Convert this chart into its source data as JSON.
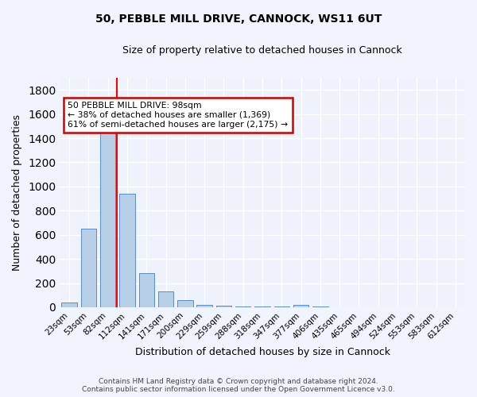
{
  "title1": "50, PEBBLE MILL DRIVE, CANNOCK, WS11 6UT",
  "title2": "Size of property relative to detached houses in Cannock",
  "xlabel": "Distribution of detached houses by size in Cannock",
  "ylabel": "Number of detached properties",
  "categories": [
    "23sqm",
    "53sqm",
    "82sqm",
    "112sqm",
    "141sqm",
    "171sqm",
    "200sqm",
    "229sqm",
    "259sqm",
    "288sqm",
    "318sqm",
    "347sqm",
    "377sqm",
    "406sqm",
    "435sqm",
    "465sqm",
    "494sqm",
    "524sqm",
    "553sqm",
    "583sqm",
    "612sqm"
  ],
  "values": [
    38,
    648,
    1470,
    940,
    280,
    130,
    58,
    22,
    10,
    5,
    5,
    5,
    18,
    3,
    0,
    0,
    0,
    0,
    0,
    0,
    0
  ],
  "bar_color": "#b8cfe8",
  "bar_edge_color": "#5b8cc8",
  "red_line_x": 2.45,
  "annotation_text": "50 PEBBLE MILL DRIVE: 98sqm\n← 38% of detached houses are smaller (1,369)\n61% of semi-detached houses are larger (2,175) →",
  "annotation_box_color": "#ffffff",
  "annotation_box_edge": "#cc0000",
  "ylim": [
    0,
    1900
  ],
  "yticks": [
    0,
    200,
    400,
    600,
    800,
    1000,
    1200,
    1400,
    1600,
    1800
  ],
  "bg_color": "#eef2fa",
  "grid_color": "#ffffff",
  "footer_line1": "Contains HM Land Registry data © Crown copyright and database right 2024.",
  "footer_line2": "Contains public sector information licensed under the Open Government Licence v3.0."
}
